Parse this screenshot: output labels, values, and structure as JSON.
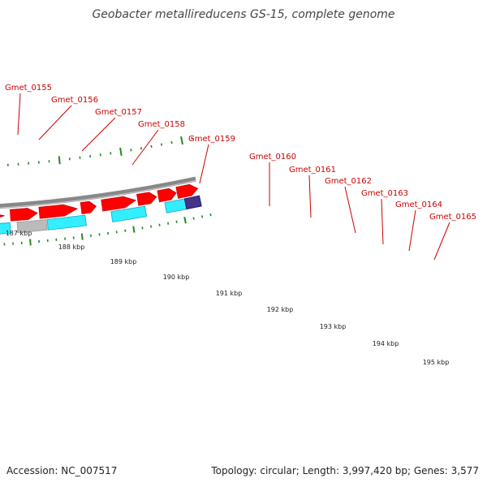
{
  "title": "Geobacter metallireducens GS-15, complete genome",
  "footer": {
    "accession": "Accession: NC_007517",
    "summary": "Topology: circular; Length: 3,997,420 bp; Genes: 3,577"
  },
  "colors": {
    "gene_label": "#cc0000",
    "cds": "#ff0000",
    "cds_dark": "#cc0000",
    "feature": "#33eeff",
    "feature_dark": "#11aacc",
    "backbone": "#888888",
    "tick": "#228822",
    "grey_feature": "#666666",
    "light_grey_feature": "#bbbbbb",
    "navy_feature": "#443388"
  },
  "gene_labels": [
    "Gmet_0155",
    "Gmet_0156",
    "Gmet_0157",
    "Gmet_0158",
    "Gmet_0159",
    "Gmet_0160",
    "Gmet_0161",
    "Gmet_0162",
    "Gmet_0163",
    "Gmet_0164",
    "Gmet_0165"
  ],
  "kbp_labels": [
    "187 kbp",
    "188 kbp",
    "189 kbp",
    "190 kbp",
    "191 kbp",
    "192 kbp",
    "193 kbp",
    "194 kbp",
    "195 kbp"
  ]
}
